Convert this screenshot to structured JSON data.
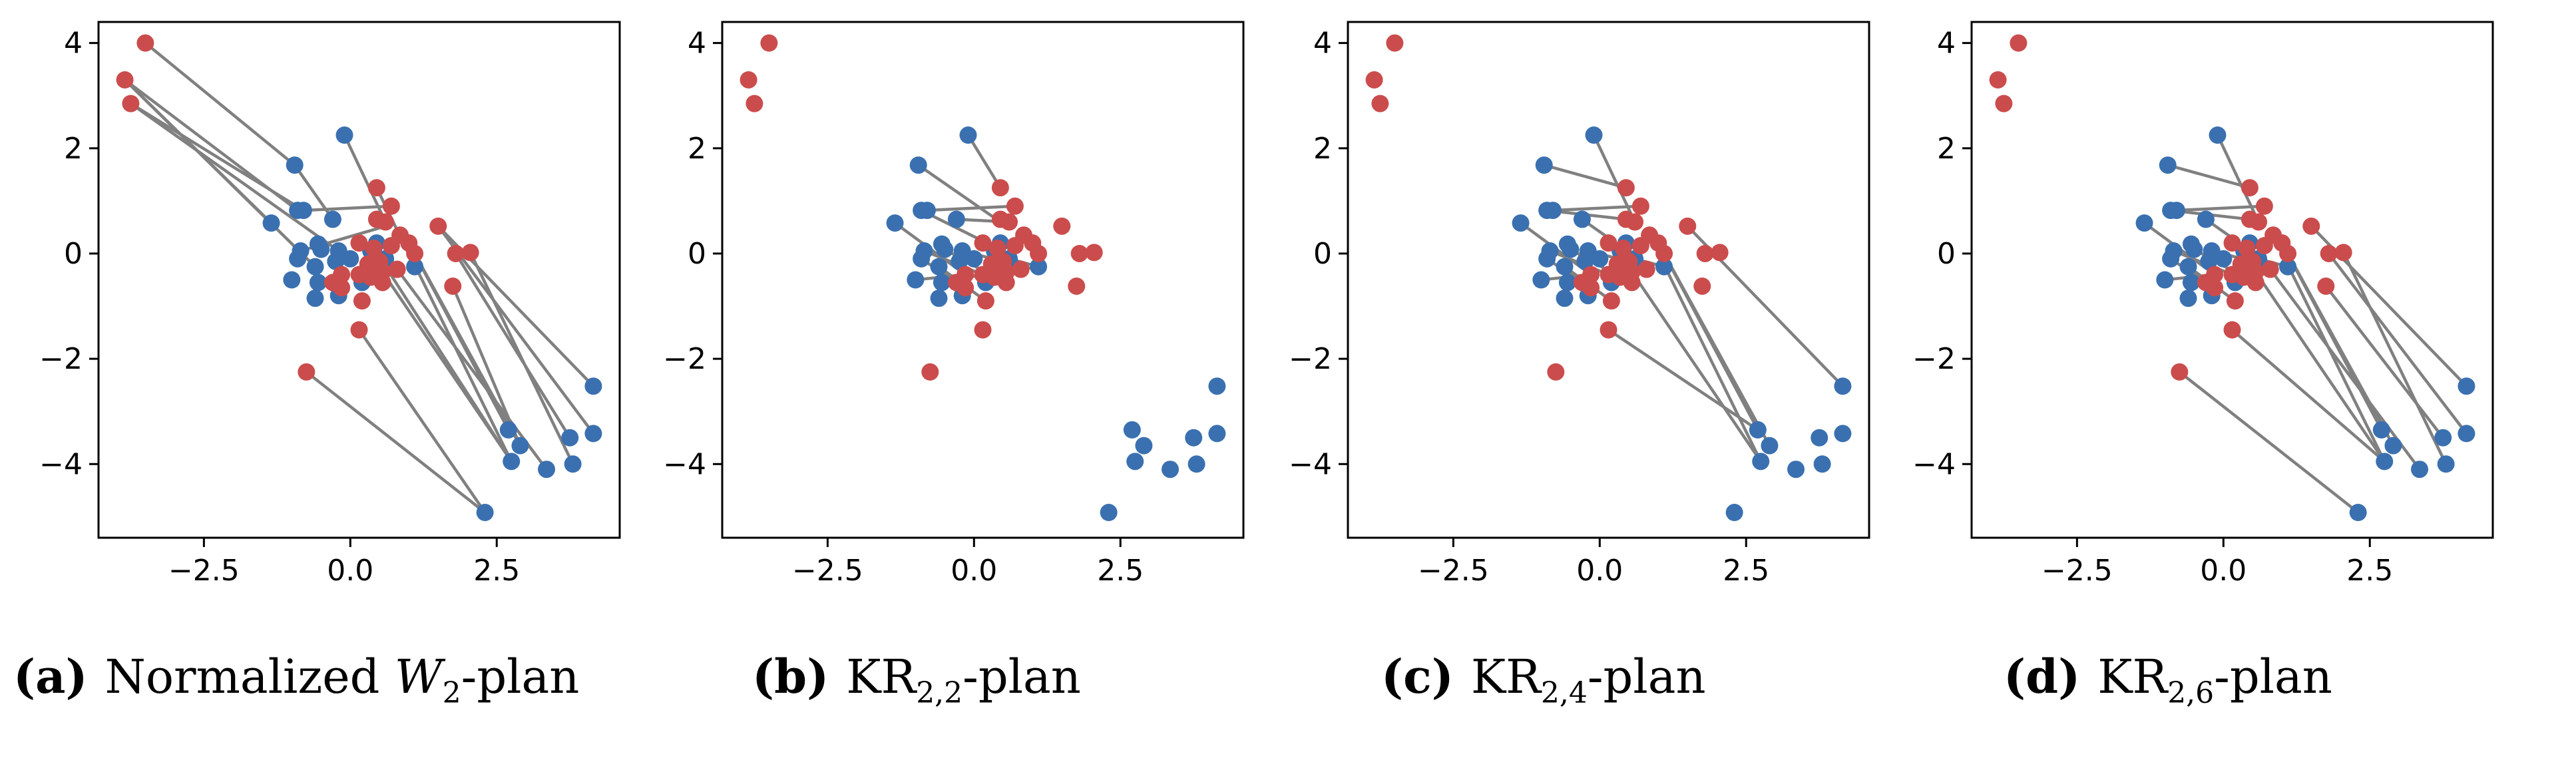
{
  "colors": {
    "source": "#3a70b0",
    "target": "#cb4c4c",
    "line": "#808080"
  },
  "captions": [
    {
      "label": "(a)",
      "pre": "Normalized ",
      "italic": "W",
      "sub": "2",
      "post": "-plan"
    },
    {
      "label": "(b)",
      "pre": "KR",
      "italic": "",
      "sub": "2,2",
      "post": "-plan"
    },
    {
      "label": "(c)",
      "pre": "KR",
      "italic": "",
      "sub": "2,4",
      "post": "-plan"
    },
    {
      "label": "(d)",
      "pre": "KR",
      "italic": "",
      "sub": "2,6",
      "post": "-plan"
    }
  ],
  "chart_data": {
    "type": "scatter",
    "xlim": [
      -4.3,
      4.6
    ],
    "ylim": [
      -5.4,
      4.4
    ],
    "xticks": [
      -2.5,
      0.0,
      2.5
    ],
    "xtick_labels": [
      "−2.5",
      "0.0",
      "2.5"
    ],
    "yticks": [
      4,
      2,
      0,
      -2,
      -4
    ],
    "ytick_labels": [
      "4",
      "2",
      "0",
      "−2",
      "−4"
    ],
    "grid": false,
    "source_points": [
      [
        -0.1,
        2.25
      ],
      [
        -0.95,
        1.68
      ],
      [
        -0.9,
        0.82
      ],
      [
        -0.8,
        0.82
      ],
      [
        -1.35,
        0.58
      ],
      [
        -0.3,
        0.65
      ],
      [
        0.45,
        0.2
      ],
      [
        -0.55,
        0.18
      ],
      [
        -0.85,
        0.05
      ],
      [
        -0.5,
        0.08
      ],
      [
        -0.2,
        0.05
      ],
      [
        0.35,
        0.05
      ],
      [
        0.0,
        -0.1
      ],
      [
        -0.25,
        -0.15
      ],
      [
        -0.9,
        -0.1
      ],
      [
        -0.6,
        -0.25
      ],
      [
        0.6,
        -0.1
      ],
      [
        1.1,
        -0.25
      ],
      [
        -1.0,
        -0.5
      ],
      [
        -0.55,
        -0.55
      ],
      [
        0.2,
        -0.55
      ],
      [
        -0.6,
        -0.85
      ],
      [
        -0.2,
        -0.8
      ],
      [
        2.7,
        -3.35
      ],
      [
        2.9,
        -3.65
      ],
      [
        2.75,
        -3.95
      ],
      [
        3.35,
        -4.1
      ],
      [
        3.75,
        -3.5
      ],
      [
        3.8,
        -4.0
      ],
      [
        4.15,
        -3.42
      ],
      [
        4.15,
        -2.52
      ],
      [
        2.3,
        -4.92
      ]
    ],
    "target_points": [
      [
        -3.5,
        4.0
      ],
      [
        -3.85,
        3.3
      ],
      [
        -3.75,
        2.85
      ],
      [
        0.45,
        1.25
      ],
      [
        0.7,
        0.9
      ],
      [
        0.6,
        0.6
      ],
      [
        0.45,
        0.65
      ],
      [
        1.5,
        0.52
      ],
      [
        0.85,
        0.35
      ],
      [
        1.0,
        0.2
      ],
      [
        0.15,
        0.2
      ],
      [
        0.4,
        0.1
      ],
      [
        0.7,
        0.15
      ],
      [
        1.1,
        0.0
      ],
      [
        1.8,
        0.0
      ],
      [
        2.05,
        0.02
      ],
      [
        0.5,
        -0.15
      ],
      [
        0.3,
        -0.2
      ],
      [
        0.55,
        -0.35
      ],
      [
        0.8,
        -0.3
      ],
      [
        0.15,
        -0.4
      ],
      [
        0.35,
        -0.45
      ],
      [
        -0.15,
        -0.4
      ],
      [
        0.55,
        -0.55
      ],
      [
        -0.15,
        -0.65
      ],
      [
        0.2,
        -0.9
      ],
      [
        1.75,
        -0.62
      ],
      [
        0.15,
        -1.45
      ],
      [
        -0.75,
        -2.25
      ],
      [
        -0.3,
        -0.55
      ]
    ],
    "panels": [
      {
        "links": [
          [
            [
              -3.5,
              4.0
            ],
            [
              -0.95,
              1.68
            ]
          ],
          [
            [
              -3.85,
              3.3
            ],
            [
              -1.35,
              0.58
            ]
          ],
          [
            [
              -3.85,
              3.3
            ],
            [
              -0.9,
              0.82
            ]
          ],
          [
            [
              -3.85,
              3.3
            ],
            [
              -0.6,
              -0.25
            ]
          ],
          [
            [
              -3.75,
              2.85
            ],
            [
              -0.8,
              0.82
            ]
          ],
          [
            [
              -3.75,
              2.85
            ],
            [
              -0.2,
              0.05
            ]
          ],
          [
            [
              -0.95,
              1.68
            ],
            [
              -0.3,
              0.65
            ]
          ],
          [
            [
              -0.8,
              0.82
            ],
            [
              0.7,
              0.9
            ]
          ],
          [
            [
              -0.85,
              0.05
            ],
            [
              0.7,
              0.55
            ]
          ],
          [
            [
              0.45,
              1.25
            ],
            [
              1.1,
              -0.25
            ]
          ],
          [
            [
              -0.1,
              2.25
            ],
            [
              0.6,
              0.6
            ]
          ],
          [
            [
              0.85,
              0.35
            ],
            [
              2.75,
              -3.95
            ]
          ],
          [
            [
              1.0,
              0.2
            ],
            [
              2.7,
              -3.35
            ]
          ],
          [
            [
              1.1,
              0.0
            ],
            [
              2.9,
              -3.65
            ]
          ],
          [
            [
              1.8,
              0.0
            ],
            [
              3.75,
              -3.5
            ]
          ],
          [
            [
              2.05,
              0.02
            ],
            [
              3.8,
              -4.0
            ]
          ],
          [
            [
              1.5,
              0.52
            ],
            [
              4.15,
              -2.52
            ]
          ],
          [
            [
              1.5,
              0.52
            ],
            [
              4.15,
              -3.42
            ]
          ],
          [
            [
              0.8,
              -0.3
            ],
            [
              3.35,
              -4.1
            ]
          ],
          [
            [
              0.55,
              -0.35
            ],
            [
              2.75,
              -3.95
            ]
          ],
          [
            [
              0.15,
              -1.45
            ],
            [
              2.3,
              -4.92
            ]
          ],
          [
            [
              -0.75,
              -2.25
            ],
            [
              2.3,
              -4.92
            ]
          ],
          [
            [
              1.75,
              -0.62
            ],
            [
              2.9,
              -3.65
            ]
          ],
          [
            [
              0.4,
              0.1
            ],
            [
              2.75,
              -3.95
            ]
          ]
        ]
      },
      {
        "links": [
          [
            [
              -0.95,
              1.68
            ],
            [
              0.45,
              0.6
            ]
          ],
          [
            [
              -0.1,
              2.25
            ],
            [
              0.45,
              1.25
            ]
          ],
          [
            [
              -0.9,
              0.82
            ],
            [
              0.4,
              0.1
            ]
          ],
          [
            [
              -0.8,
              0.82
            ],
            [
              0.7,
              0.9
            ]
          ],
          [
            [
              -1.35,
              0.58
            ],
            [
              -0.15,
              -0.4
            ]
          ],
          [
            [
              -0.3,
              0.65
            ],
            [
              0.6,
              0.6
            ]
          ],
          [
            [
              0.45,
              0.2
            ],
            [
              0.55,
              -0.55
            ]
          ],
          [
            [
              -0.85,
              0.05
            ],
            [
              0.15,
              -0.4
            ]
          ],
          [
            [
              -0.5,
              0.08
            ],
            [
              0.35,
              -0.45
            ]
          ],
          [
            [
              -0.2,
              0.05
            ],
            [
              0.5,
              -0.15
            ]
          ],
          [
            [
              0.35,
              0.05
            ],
            [
              0.3,
              -0.2
            ]
          ],
          [
            [
              -0.25,
              -0.15
            ],
            [
              -0.15,
              -0.65
            ]
          ],
          [
            [
              -0.9,
              -0.1
            ],
            [
              -0.3,
              -0.55
            ]
          ],
          [
            [
              -0.6,
              -0.25
            ],
            [
              0.2,
              -0.9
            ]
          ],
          [
            [
              -1.0,
              -0.5
            ],
            [
              -0.15,
              -0.4
            ]
          ],
          [
            [
              -0.55,
              -0.55
            ],
            [
              0.15,
              -0.4
            ]
          ],
          [
            [
              0.2,
              -0.55
            ],
            [
              0.55,
              -0.35
            ]
          ],
          [
            [
              0.6,
              -0.1
            ],
            [
              1.1,
              -0.25
            ]
          ],
          [
            [
              1.1,
              -0.25
            ],
            [
              0.8,
              -0.3
            ]
          ]
        ]
      },
      {
        "links": [
          [
            [
              -0.95,
              1.68
            ],
            [
              0.45,
              1.25
            ]
          ],
          [
            [
              -0.1,
              2.25
            ],
            [
              0.6,
              0.6
            ]
          ],
          [
            [
              -0.9,
              0.82
            ],
            [
              0.45,
              0.65
            ]
          ],
          [
            [
              -0.8,
              0.82
            ],
            [
              0.7,
              0.9
            ]
          ],
          [
            [
              -1.35,
              0.58
            ],
            [
              -0.15,
              -0.4
            ]
          ],
          [
            [
              -0.3,
              0.65
            ],
            [
              0.4,
              0.1
            ]
          ],
          [
            [
              0.45,
              0.2
            ],
            [
              0.55,
              -0.55
            ]
          ],
          [
            [
              -0.85,
              0.05
            ],
            [
              0.15,
              -0.4
            ]
          ],
          [
            [
              -0.5,
              0.08
            ],
            [
              0.35,
              -0.45
            ]
          ],
          [
            [
              -0.2,
              0.05
            ],
            [
              0.5,
              -0.15
            ]
          ],
          [
            [
              -0.25,
              -0.15
            ],
            [
              -0.15,
              -0.65
            ]
          ],
          [
            [
              -0.9,
              -0.1
            ],
            [
              -0.3,
              -0.55
            ]
          ],
          [
            [
              -0.6,
              -0.25
            ],
            [
              0.2,
              -0.9
            ]
          ],
          [
            [
              -1.0,
              -0.5
            ],
            [
              -0.15,
              -0.4
            ]
          ],
          [
            [
              0.6,
              -0.1
            ],
            [
              1.1,
              -0.25
            ]
          ],
          [
            [
              1.0,
              0.2
            ],
            [
              2.7,
              -3.35
            ]
          ],
          [
            [
              0.85,
              0.35
            ],
            [
              2.75,
              -3.95
            ]
          ],
          [
            [
              1.1,
              0.0
            ],
            [
              2.9,
              -3.65
            ]
          ],
          [
            [
              1.5,
              0.52
            ],
            [
              4.15,
              -2.52
            ]
          ],
          [
            [
              0.55,
              -0.35
            ],
            [
              2.75,
              -3.95
            ]
          ],
          [
            [
              0.15,
              -1.45
            ],
            [
              2.7,
              -3.35
            ]
          ]
        ]
      },
      {
        "links": [
          [
            [
              -0.95,
              1.68
            ],
            [
              0.45,
              1.25
            ]
          ],
          [
            [
              -0.1,
              2.25
            ],
            [
              0.6,
              0.6
            ]
          ],
          [
            [
              -0.9,
              0.82
            ],
            [
              0.45,
              0.65
            ]
          ],
          [
            [
              -0.8,
              0.82
            ],
            [
              0.7,
              0.9
            ]
          ],
          [
            [
              -1.35,
              0.58
            ],
            [
              -0.15,
              -0.4
            ]
          ],
          [
            [
              -0.3,
              0.65
            ],
            [
              0.4,
              0.1
            ]
          ],
          [
            [
              -0.85,
              0.05
            ],
            [
              0.15,
              -0.4
            ]
          ],
          [
            [
              -0.5,
              0.08
            ],
            [
              0.35,
              -0.45
            ]
          ],
          [
            [
              -0.2,
              0.05
            ],
            [
              0.5,
              -0.15
            ]
          ],
          [
            [
              -0.25,
              -0.15
            ],
            [
              -0.15,
              -0.65
            ]
          ],
          [
            [
              -0.9,
              -0.1
            ],
            [
              -0.3,
              -0.55
            ]
          ],
          [
            [
              -0.6,
              -0.25
            ],
            [
              0.2,
              -0.9
            ]
          ],
          [
            [
              -1.0,
              -0.5
            ],
            [
              -0.15,
              -0.4
            ]
          ],
          [
            [
              0.6,
              -0.1
            ],
            [
              1.1,
              -0.25
            ]
          ],
          [
            [
              1.0,
              0.2
            ],
            [
              2.7,
              -3.35
            ]
          ],
          [
            [
              0.85,
              0.35
            ],
            [
              2.75,
              -3.95
            ]
          ],
          [
            [
              1.1,
              0.0
            ],
            [
              2.9,
              -3.65
            ]
          ],
          [
            [
              1.5,
              0.52
            ],
            [
              4.15,
              -2.52
            ]
          ],
          [
            [
              1.8,
              0.0
            ],
            [
              4.15,
              -3.42
            ]
          ],
          [
            [
              2.05,
              0.02
            ],
            [
              3.8,
              -4.0
            ]
          ],
          [
            [
              1.75,
              -0.62
            ],
            [
              3.75,
              -3.5
            ]
          ],
          [
            [
              0.8,
              -0.3
            ],
            [
              3.35,
              -4.1
            ]
          ],
          [
            [
              0.55,
              -0.35
            ],
            [
              2.75,
              -3.95
            ]
          ],
          [
            [
              0.15,
              -1.45
            ],
            [
              2.75,
              -3.95
            ]
          ],
          [
            [
              -0.75,
              -2.25
            ],
            [
              2.3,
              -4.92
            ]
          ]
        ]
      }
    ]
  }
}
